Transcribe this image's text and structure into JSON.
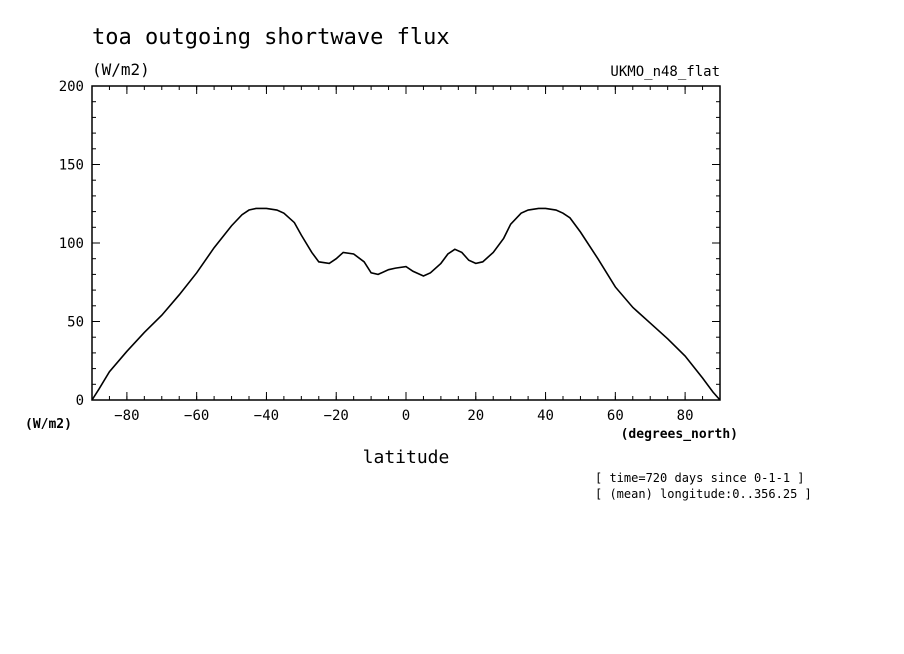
{
  "chart_data": {
    "type": "line",
    "title": "toa outgoing shortwave flux",
    "ylabel": "(W/m2)",
    "ylabel_bottom": "(W/m2)",
    "model": "UKMO_n48_flat",
    "xlabel": "latitude",
    "xunits": "(degrees_north)",
    "notes": [
      "[ time=720 days since 0-1-1 ]",
      "[ (mean) longitude:0..356.25 ]"
    ],
    "xlim": [
      -90,
      90
    ],
    "ylim": [
      0,
      200
    ],
    "xticks": [
      -80,
      -60,
      -40,
      -20,
      0,
      20,
      40,
      60,
      80
    ],
    "yticks": [
      0,
      50,
      100,
      150,
      200
    ],
    "grid": false,
    "series": [
      {
        "x": [
          -90,
          -88,
          -85,
          -80,
          -75,
          -70,
          -65,
          -60,
          -55,
          -50,
          -47,
          -45,
          -43,
          -40,
          -37,
          -35,
          -32,
          -30,
          -27,
          -25,
          -22,
          -20,
          -18,
          -15,
          -12,
          -10,
          -8,
          -5,
          -3,
          0,
          2,
          5,
          7,
          10,
          12,
          14,
          16,
          18,
          20,
          22,
          25,
          28,
          30,
          33,
          35,
          38,
          40,
          43,
          45,
          47,
          50,
          55,
          60,
          65,
          70,
          75,
          80,
          85,
          88,
          90
        ],
        "y": [
          0,
          7,
          18,
          31,
          43,
          54,
          67,
          81,
          97,
          111,
          118,
          121,
          122,
          122,
          121,
          119,
          113,
          105,
          94,
          88,
          87,
          90,
          94,
          93,
          88,
          81,
          80,
          83,
          84,
          85,
          82,
          79,
          81,
          87,
          93,
          96,
          94,
          89,
          87,
          88,
          94,
          103,
          112,
          119,
          121,
          122,
          122,
          121,
          119,
          116,
          107,
          90,
          72,
          59,
          49,
          39,
          28,
          14,
          5,
          0
        ]
      }
    ]
  }
}
